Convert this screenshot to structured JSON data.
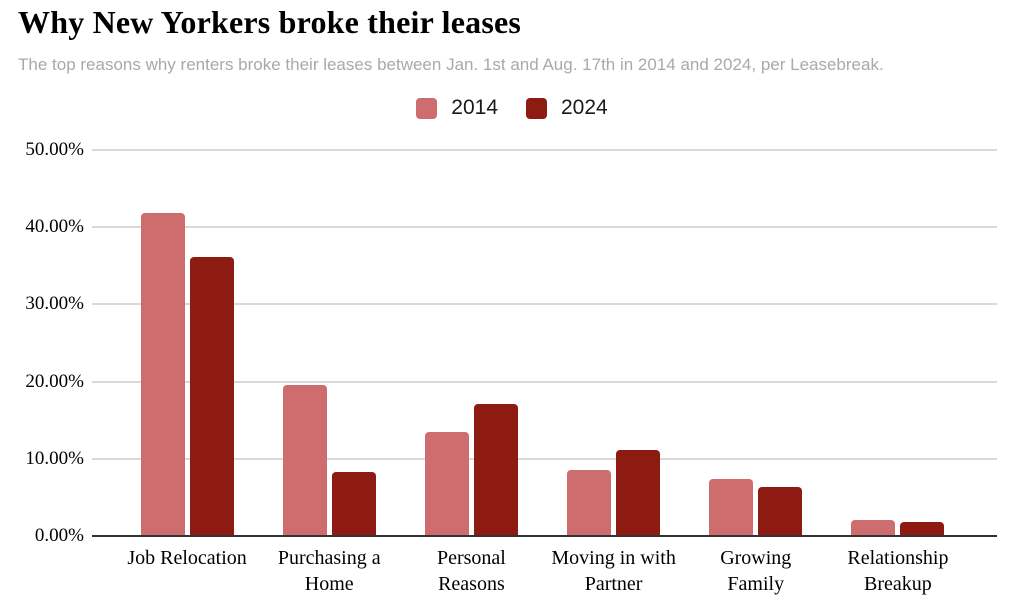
{
  "header": {
    "title": "Why New Yorkers broke their leases",
    "subtitle": "The top reasons why renters broke their leases between Jan. 1st and Aug. 17th in 2014 and 2024, per Leasebreak."
  },
  "legend": {
    "items": [
      {
        "label": "2014",
        "color": "#ce6d6d"
      },
      {
        "label": "2024",
        "color": "#8e1b12"
      }
    ]
  },
  "chart_data": {
    "type": "bar",
    "title": "Why New Yorkers broke their leases",
    "subtitle": "The top reasons why renters broke their leases between Jan. 1st and Aug. 17th in 2014 and 2024, per Leasebreak.",
    "categories": [
      "Job Relocation",
      "Purchasing a Home",
      "Personal Reasons",
      "Moving in with Partner",
      "Growing Family",
      "Relationship Breakup"
    ],
    "series": [
      {
        "name": "2014",
        "color": "#ce6d6d",
        "values": [
          41.8,
          19.6,
          13.5,
          8.5,
          7.4,
          2.1
        ]
      },
      {
        "name": "2024",
        "color": "#8e1b12",
        "values": [
          36.2,
          8.3,
          17.1,
          11.2,
          6.3,
          1.8
        ]
      }
    ],
    "xlabel": "",
    "ylabel": "",
    "ylim": [
      0,
      50
    ],
    "yticks": [
      {
        "value": 50,
        "label": "50.00%"
      },
      {
        "value": 40,
        "label": "40.00%"
      },
      {
        "value": 30,
        "label": "30.00%"
      },
      {
        "value": 20,
        "label": "20.00%"
      },
      {
        "value": 10,
        "label": "10.00%"
      },
      {
        "value": 0,
        "label": "0.00%"
      }
    ],
    "grid": true,
    "legend_position": "top"
  },
  "colors": {
    "background": "#ffffff",
    "grid": "#d9d9d9",
    "axis": "#333333",
    "title_text": "#000000",
    "subtitle_text": "#a9a9a9"
  }
}
